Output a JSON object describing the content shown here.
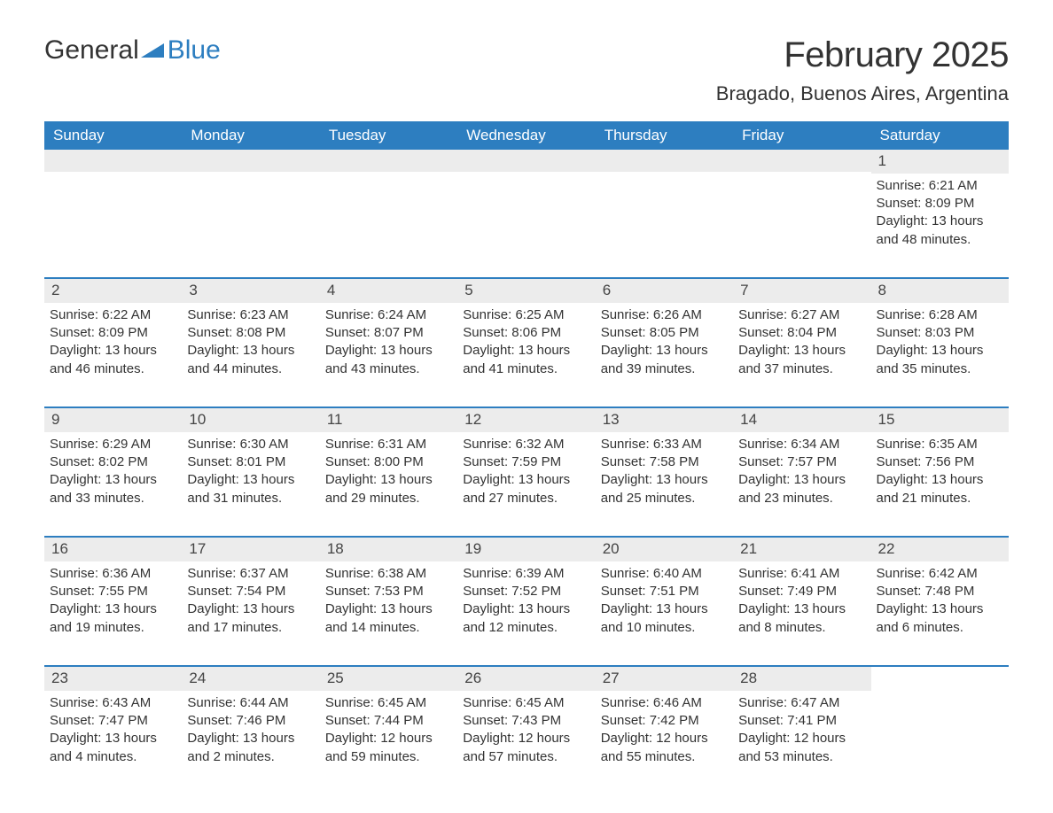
{
  "logo": {
    "text1": "General",
    "text2": "Blue",
    "accent": "#2d7ec0"
  },
  "title": "February 2025",
  "location": "Bragado, Buenos Aires, Argentina",
  "style": {
    "header_bg": "#2d7ec0",
    "header_fg": "#ffffff",
    "daybar_bg": "#ececec",
    "row_border": "#2d7ec0",
    "body_bg": "#ffffff",
    "text_color": "#333333",
    "title_fontsize": 40,
    "location_fontsize": 22,
    "dayhead_fontsize": 17,
    "body_fontsize": 15
  },
  "day_headers": [
    "Sunday",
    "Monday",
    "Tuesday",
    "Wednesday",
    "Thursday",
    "Friday",
    "Saturday"
  ],
  "weeks": [
    [
      {
        "empty": true
      },
      {
        "empty": true
      },
      {
        "empty": true
      },
      {
        "empty": true
      },
      {
        "empty": true
      },
      {
        "empty": true
      },
      {
        "num": "1",
        "sunrise": "Sunrise: 6:21 AM",
        "sunset": "Sunset: 8:09 PM",
        "daylight": "Daylight: 13 hours and 48 minutes."
      }
    ],
    [
      {
        "num": "2",
        "sunrise": "Sunrise: 6:22 AM",
        "sunset": "Sunset: 8:09 PM",
        "daylight": "Daylight: 13 hours and 46 minutes."
      },
      {
        "num": "3",
        "sunrise": "Sunrise: 6:23 AM",
        "sunset": "Sunset: 8:08 PM",
        "daylight": "Daylight: 13 hours and 44 minutes."
      },
      {
        "num": "4",
        "sunrise": "Sunrise: 6:24 AM",
        "sunset": "Sunset: 8:07 PM",
        "daylight": "Daylight: 13 hours and 43 minutes."
      },
      {
        "num": "5",
        "sunrise": "Sunrise: 6:25 AM",
        "sunset": "Sunset: 8:06 PM",
        "daylight": "Daylight: 13 hours and 41 minutes."
      },
      {
        "num": "6",
        "sunrise": "Sunrise: 6:26 AM",
        "sunset": "Sunset: 8:05 PM",
        "daylight": "Daylight: 13 hours and 39 minutes."
      },
      {
        "num": "7",
        "sunrise": "Sunrise: 6:27 AM",
        "sunset": "Sunset: 8:04 PM",
        "daylight": "Daylight: 13 hours and 37 minutes."
      },
      {
        "num": "8",
        "sunrise": "Sunrise: 6:28 AM",
        "sunset": "Sunset: 8:03 PM",
        "daylight": "Daylight: 13 hours and 35 minutes."
      }
    ],
    [
      {
        "num": "9",
        "sunrise": "Sunrise: 6:29 AM",
        "sunset": "Sunset: 8:02 PM",
        "daylight": "Daylight: 13 hours and 33 minutes."
      },
      {
        "num": "10",
        "sunrise": "Sunrise: 6:30 AM",
        "sunset": "Sunset: 8:01 PM",
        "daylight": "Daylight: 13 hours and 31 minutes."
      },
      {
        "num": "11",
        "sunrise": "Sunrise: 6:31 AM",
        "sunset": "Sunset: 8:00 PM",
        "daylight": "Daylight: 13 hours and 29 minutes."
      },
      {
        "num": "12",
        "sunrise": "Sunrise: 6:32 AM",
        "sunset": "Sunset: 7:59 PM",
        "daylight": "Daylight: 13 hours and 27 minutes."
      },
      {
        "num": "13",
        "sunrise": "Sunrise: 6:33 AM",
        "sunset": "Sunset: 7:58 PM",
        "daylight": "Daylight: 13 hours and 25 minutes."
      },
      {
        "num": "14",
        "sunrise": "Sunrise: 6:34 AM",
        "sunset": "Sunset: 7:57 PM",
        "daylight": "Daylight: 13 hours and 23 minutes."
      },
      {
        "num": "15",
        "sunrise": "Sunrise: 6:35 AM",
        "sunset": "Sunset: 7:56 PM",
        "daylight": "Daylight: 13 hours and 21 minutes."
      }
    ],
    [
      {
        "num": "16",
        "sunrise": "Sunrise: 6:36 AM",
        "sunset": "Sunset: 7:55 PM",
        "daylight": "Daylight: 13 hours and 19 minutes."
      },
      {
        "num": "17",
        "sunrise": "Sunrise: 6:37 AM",
        "sunset": "Sunset: 7:54 PM",
        "daylight": "Daylight: 13 hours and 17 minutes."
      },
      {
        "num": "18",
        "sunrise": "Sunrise: 6:38 AM",
        "sunset": "Sunset: 7:53 PM",
        "daylight": "Daylight: 13 hours and 14 minutes."
      },
      {
        "num": "19",
        "sunrise": "Sunrise: 6:39 AM",
        "sunset": "Sunset: 7:52 PM",
        "daylight": "Daylight: 13 hours and 12 minutes."
      },
      {
        "num": "20",
        "sunrise": "Sunrise: 6:40 AM",
        "sunset": "Sunset: 7:51 PM",
        "daylight": "Daylight: 13 hours and 10 minutes."
      },
      {
        "num": "21",
        "sunrise": "Sunrise: 6:41 AM",
        "sunset": "Sunset: 7:49 PM",
        "daylight": "Daylight: 13 hours and 8 minutes."
      },
      {
        "num": "22",
        "sunrise": "Sunrise: 6:42 AM",
        "sunset": "Sunset: 7:48 PM",
        "daylight": "Daylight: 13 hours and 6 minutes."
      }
    ],
    [
      {
        "num": "23",
        "sunrise": "Sunrise: 6:43 AM",
        "sunset": "Sunset: 7:47 PM",
        "daylight": "Daylight: 13 hours and 4 minutes."
      },
      {
        "num": "24",
        "sunrise": "Sunrise: 6:44 AM",
        "sunset": "Sunset: 7:46 PM",
        "daylight": "Daylight: 13 hours and 2 minutes."
      },
      {
        "num": "25",
        "sunrise": "Sunrise: 6:45 AM",
        "sunset": "Sunset: 7:44 PM",
        "daylight": "Daylight: 12 hours and 59 minutes."
      },
      {
        "num": "26",
        "sunrise": "Sunrise: 6:45 AM",
        "sunset": "Sunset: 7:43 PM",
        "daylight": "Daylight: 12 hours and 57 minutes."
      },
      {
        "num": "27",
        "sunrise": "Sunrise: 6:46 AM",
        "sunset": "Sunset: 7:42 PM",
        "daylight": "Daylight: 12 hours and 55 minutes."
      },
      {
        "num": "28",
        "sunrise": "Sunrise: 6:47 AM",
        "sunset": "Sunset: 7:41 PM",
        "daylight": "Daylight: 12 hours and 53 minutes."
      },
      {
        "empty": true,
        "nobar": true
      }
    ]
  ]
}
